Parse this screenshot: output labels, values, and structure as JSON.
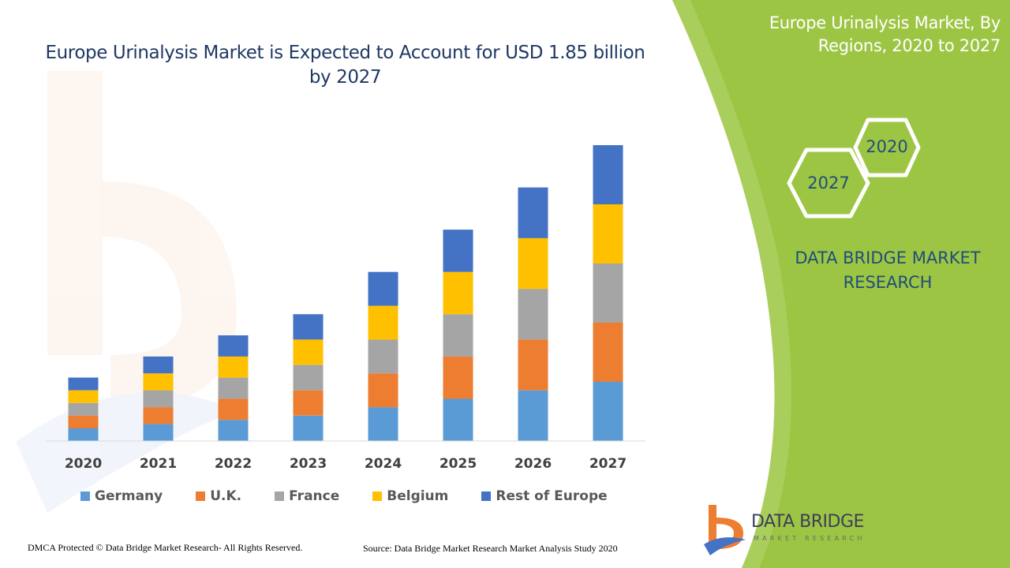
{
  "chart_data": {
    "type": "bar",
    "stacked": true,
    "title": "Europe Urinalysis Market is Expected to Account for USD 1.85 billion by 2027",
    "categories": [
      "2020",
      "2021",
      "2022",
      "2023",
      "2024",
      "2025",
      "2026",
      "2027"
    ],
    "series": [
      {
        "name": "Germany",
        "color": "#5b9bd5",
        "values": [
          3,
          4,
          5,
          6,
          8,
          10,
          12,
          14
        ]
      },
      {
        "name": "U.K.",
        "color": "#ed7d31",
        "values": [
          3,
          4,
          5,
          6,
          8,
          10,
          12,
          14
        ]
      },
      {
        "name": "France",
        "color": "#a5a5a5",
        "values": [
          3,
          4,
          5,
          6,
          8,
          10,
          12,
          14
        ]
      },
      {
        "name": "Belgium",
        "color": "#ffc000",
        "values": [
          3,
          4,
          5,
          6,
          8,
          10,
          12,
          14
        ]
      },
      {
        "name": "Rest of Europe",
        "color": "#4472c4",
        "values": [
          3,
          4,
          5,
          6,
          8,
          10,
          12,
          14
        ]
      }
    ],
    "xlabel": "",
    "ylabel": "",
    "ylim": [
      0,
      70
    ],
    "grid": false,
    "legend": "bottom"
  },
  "panel": {
    "title_line1": "Europe Urinalysis Market, By",
    "title_line2": "Regions, 2020 to 2027",
    "hex_top": "2020",
    "hex_bottom": "2027",
    "brand_line1": "DATA BRIDGE MARKET",
    "brand_line2": "RESEARCH",
    "accent_color": "#9dc544"
  },
  "logo": {
    "name": "DATA BRIDGE",
    "tagline": "MARKET RESEARCH"
  },
  "footer": {
    "copyright": "DMCA Protected © Data Bridge Market Research- All Rights Reserved.",
    "source": "Source: Data Bridge Market Research Market Analysis Study 2020"
  }
}
